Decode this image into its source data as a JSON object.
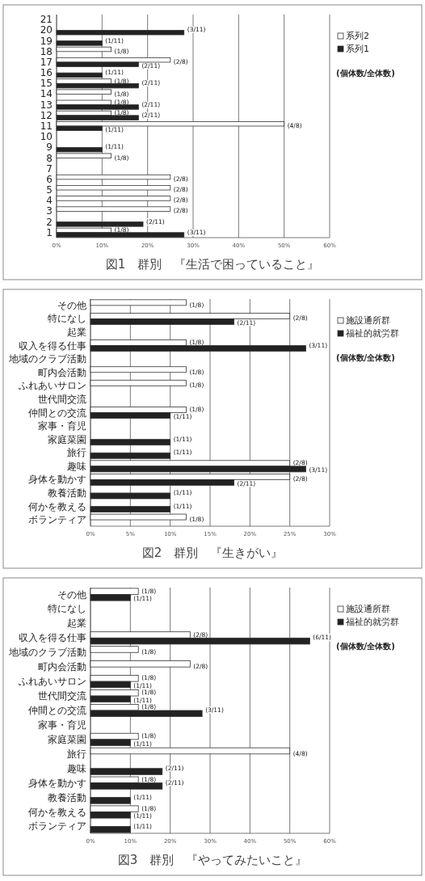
{
  "chart_data": [
    {
      "type": "bar",
      "orientation": "horizontal",
      "title": "図1　群別　『生活で困っていること』",
      "annotations": [
        "(個体数/全体数)"
      ],
      "categories": [
        "21",
        "20",
        "19",
        "18",
        "17",
        "16",
        "15",
        "14",
        "13",
        "12",
        "11",
        "10",
        "9",
        "8",
        "7",
        "6",
        "5",
        "4",
        "3",
        "2",
        "1"
      ],
      "series": [
        {
          "name": "系列2",
          "color": "#ffffff",
          "values": [
            null,
            null,
            null,
            12,
            25,
            null,
            12,
            12,
            12,
            12,
            50,
            null,
            null,
            12,
            null,
            25,
            25,
            25,
            25,
            null,
            12
          ],
          "value_labels": [
            null,
            null,
            null,
            "(1/8)",
            "(2/8)",
            null,
            "(1/8)",
            "(1/8)",
            "(1/8)",
            "(1/8)",
            "(4/8)",
            null,
            null,
            "(1/8)",
            null,
            "(2/8)",
            "(2/8)",
            "(2/8)",
            "(2/8)",
            null,
            "(1/8)"
          ]
        },
        {
          "name": "系列1",
          "color": "#222222",
          "values": [
            null,
            28,
            10,
            null,
            18,
            10,
            18,
            null,
            18,
            18,
            10,
            null,
            10,
            null,
            null,
            null,
            null,
            null,
            null,
            19,
            28
          ],
          "value_labels": [
            null,
            "(3/11)",
            "(1/11)",
            null,
            "(2/11)",
            "(1/11)",
            "(2/11)",
            null,
            "(2/11)",
            "(2/11)",
            "(1/11)",
            null,
            "(1/11)",
            null,
            null,
            null,
            null,
            null,
            null,
            "(2/11)",
            "(3/11)"
          ]
        }
      ],
      "xlim": [
        0,
        60
      ],
      "xticks": [
        {
          "value": 0,
          "label": "0%"
        },
        {
          "value": 10,
          "label": "10%"
        },
        {
          "value": 20,
          "label": "20%"
        },
        {
          "value": 30,
          "label": "30%"
        },
        {
          "value": 40,
          "label": "40%"
        },
        {
          "value": 50,
          "label": "50%"
        },
        {
          "value": 60,
          "label": "60%"
        }
      ],
      "grid": "x",
      "legend": "right"
    },
    {
      "type": "bar",
      "orientation": "horizontal",
      "title": "図2　群別　『生きがい』",
      "annotations": [
        "(個体数/全体数)"
      ],
      "categories": [
        "その他",
        "特になし",
        "起業",
        "収入を得る仕事",
        "地域のクラブ活動",
        "町内会活動",
        "ふれあいサロン",
        "世代間交流",
        "仲間との交流",
        "家事・育児",
        "家庭菜園",
        "旅行",
        "趣味",
        "身体を動かす",
        "教養活動",
        "何かを教える",
        "ボランティア"
      ],
      "series": [
        {
          "name": "施設通所群",
          "color": "#ffffff",
          "values": [
            12,
            25,
            null,
            12,
            null,
            12,
            12,
            null,
            12,
            null,
            null,
            null,
            25,
            25,
            null,
            null,
            12
          ],
          "value_labels": [
            "(1/8)",
            "(2/8)",
            null,
            "(1/8)",
            null,
            "(1/8)",
            "(1/8)",
            null,
            "(1/8)",
            null,
            null,
            null,
            "(2/8)",
            "(2/8)",
            null,
            null,
            "(1/8)"
          ]
        },
        {
          "name": "福祉的就労群",
          "color": "#222222",
          "values": [
            null,
            18,
            null,
            27,
            null,
            null,
            null,
            null,
            10,
            null,
            10,
            10,
            27,
            18,
            10,
            10,
            null
          ],
          "value_labels": [
            null,
            "(2/11)",
            null,
            "(3/11)",
            null,
            null,
            null,
            null,
            "(1/11)",
            null,
            "(1/11)",
            "(1/11)",
            "(3/11)",
            "(2/11)",
            "(1/11)",
            "(1/11)",
            null
          ]
        }
      ],
      "xlim": [
        0,
        30
      ],
      "xticks": [
        {
          "value": 0,
          "label": "0%"
        },
        {
          "value": 5,
          "label": "5%"
        },
        {
          "value": 10,
          "label": "10%"
        },
        {
          "value": 15,
          "label": "15%"
        },
        {
          "value": 20,
          "label": "20%"
        },
        {
          "value": 25,
          "label": "25%"
        },
        {
          "value": 30,
          "label": "30%"
        }
      ],
      "grid": "x",
      "legend": "right"
    },
    {
      "type": "bar",
      "orientation": "horizontal",
      "title": "図3　群別　『やってみたいこと』",
      "annotations": [
        "(個体数/全体数)"
      ],
      "categories": [
        "その他",
        "特になし",
        "起業",
        "収入を得る仕事",
        "地域のクラブ活動",
        "町内会活動",
        "ふれあいサロン",
        "世代間交流",
        "仲間との交流",
        "家事・育児",
        "家庭菜園",
        "旅行",
        "趣味",
        "身体を動かす",
        "教養活動",
        "何かを教える",
        "ボランティア"
      ],
      "series": [
        {
          "name": "施設通所群",
          "color": "#ffffff",
          "values": [
            12,
            null,
            null,
            25,
            12,
            25,
            12,
            12,
            12,
            null,
            12,
            50,
            null,
            12,
            null,
            12,
            null
          ],
          "value_labels": [
            "(1/8)",
            null,
            null,
            "(2/8)",
            "(1/8)",
            "(2/8)",
            "(1/8)",
            "(1/8)",
            "(1/8)",
            null,
            "(1/8)",
            "(4/8)",
            null,
            "(1/8)",
            null,
            "(1/8)",
            null
          ]
        },
        {
          "name": "福祉的就労群",
          "color": "#222222",
          "values": [
            10,
            null,
            null,
            55,
            null,
            null,
            10,
            10,
            28,
            null,
            10,
            null,
            18,
            18,
            10,
            10,
            10
          ],
          "value_labels": [
            "(1/11)",
            null,
            null,
            "(6/11)",
            null,
            null,
            "(1/11)",
            "(1/11)",
            "(3/11)",
            null,
            "(1/11)",
            null,
            "(2/11)",
            "(2/11)",
            "(1/11)",
            "(1/11)",
            "(1/11)"
          ]
        }
      ],
      "xlim": [
        0,
        60
      ],
      "xticks": [
        {
          "value": 0,
          "label": "0%"
        },
        {
          "value": 10,
          "label": "10%"
        },
        {
          "value": 20,
          "label": "20%"
        },
        {
          "value": 30,
          "label": "30%"
        },
        {
          "value": 40,
          "label": "40%"
        },
        {
          "value": 50,
          "label": "50%"
        },
        {
          "value": 60,
          "label": "60%"
        }
      ],
      "grid": "x",
      "legend": "right"
    }
  ]
}
